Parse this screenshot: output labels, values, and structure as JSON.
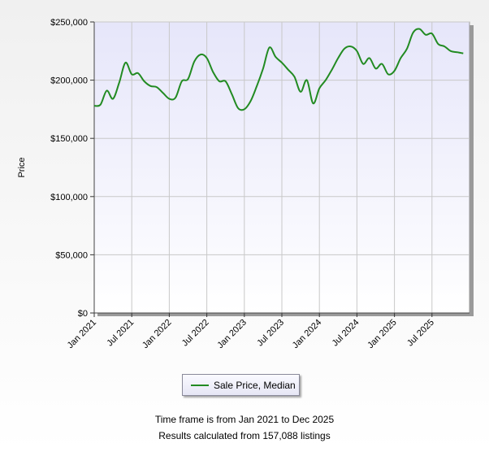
{
  "chart_data": {
    "type": "line",
    "xlabel": "",
    "ylabel": "Price",
    "ylim": [
      0,
      250000
    ],
    "xlim": [
      "2021-01",
      "2025-12"
    ],
    "y_ticks": [
      "$0",
      "$50,000",
      "$100,000",
      "$150,000",
      "$200,000",
      "$250,000"
    ],
    "y_tick_values": [
      0,
      50000,
      100000,
      150000,
      200000,
      250000
    ],
    "x_ticks": [
      "Jan 2021",
      "Jul 2021",
      "Jan 2022",
      "Jul 2022",
      "Jan 2023",
      "Jul 2023",
      "Jan 2024",
      "Jul 2024",
      "Jan 2025",
      "Jul 2025"
    ],
    "x_tick_values": [
      "2021-01",
      "2021-07",
      "2022-01",
      "2022-07",
      "2023-01",
      "2023-07",
      "2024-01",
      "2024-07",
      "2025-01",
      "2025-07"
    ],
    "grid": true,
    "legend_position": "bottom-center",
    "series": [
      {
        "name": "Sale Price, Median",
        "color": "#228b22",
        "x": [
          "2021-01",
          "2021-02",
          "2021-03",
          "2021-04",
          "2021-05",
          "2021-06",
          "2021-07",
          "2021-08",
          "2021-09",
          "2021-10",
          "2021-11",
          "2021-12",
          "2022-01",
          "2022-02",
          "2022-03",
          "2022-04",
          "2022-05",
          "2022-06",
          "2022-07",
          "2022-08",
          "2022-09",
          "2022-10",
          "2022-11",
          "2022-12",
          "2023-01",
          "2023-02",
          "2023-03",
          "2023-04",
          "2023-05",
          "2023-06",
          "2023-07",
          "2023-08",
          "2023-09",
          "2023-10",
          "2023-11",
          "2023-12",
          "2024-01",
          "2024-02",
          "2024-03",
          "2024-04",
          "2024-05",
          "2024-06",
          "2024-07",
          "2024-08",
          "2024-09",
          "2024-10",
          "2024-11",
          "2024-12",
          "2025-01",
          "2025-02",
          "2025-03",
          "2025-04",
          "2025-05",
          "2025-06",
          "2025-07",
          "2025-08",
          "2025-09",
          "2025-10",
          "2025-11",
          "2025-12"
        ],
        "y": [
          178000,
          179000,
          191000,
          184000,
          198000,
          215000,
          205000,
          206000,
          199000,
          195000,
          194000,
          189000,
          184000,
          185000,
          199000,
          201000,
          216000,
          222000,
          219000,
          207000,
          199000,
          199000,
          188000,
          176000,
          175000,
          182000,
          195000,
          210000,
          228000,
          220000,
          215000,
          209000,
          203000,
          190000,
          200000,
          180000,
          193000,
          200000,
          209000,
          219000,
          227000,
          229000,
          225000,
          214000,
          219000,
          210000,
          214000,
          205000,
          208000,
          219000,
          227000,
          241000,
          244000,
          239000,
          240000,
          231000,
          229000,
          225000,
          224000,
          223000
        ]
      }
    ]
  },
  "legend": {
    "label": "Sale Price, Median"
  },
  "footer": {
    "line1": "Time frame is from Jan 2021 to Dec 2025",
    "line2": "Results calculated from 157,088 listings"
  },
  "colors": {
    "plot_bg_top": "#e6e6fa",
    "plot_bg_bottom": "#ffffff",
    "outer_bg": "#f2f2f2",
    "grid": "#c8c8c8",
    "line": "#228b22"
  }
}
